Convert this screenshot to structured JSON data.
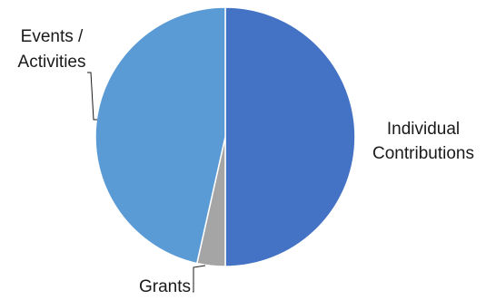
{
  "chart_data": {
    "type": "pie",
    "title": "",
    "slices": [
      {
        "label": "Individual Contributions",
        "label_lines": [
          "Individual",
          "Contributions"
        ],
        "value": 50.0,
        "color": "#4472c4"
      },
      {
        "label": "Grants",
        "label_lines": [
          "Grants"
        ],
        "value": 3.5,
        "color": "#a5a5a5"
      },
      {
        "label": "Events / Activities",
        "label_lines": [
          "Events /",
          "Activities"
        ],
        "value": 46.5,
        "color": "#5b9bd5"
      }
    ],
    "start_angle_deg": 0,
    "direction": "clockwise",
    "slice_border_color": "#ffffff",
    "legend": "none",
    "data_labels": "category names outside"
  }
}
